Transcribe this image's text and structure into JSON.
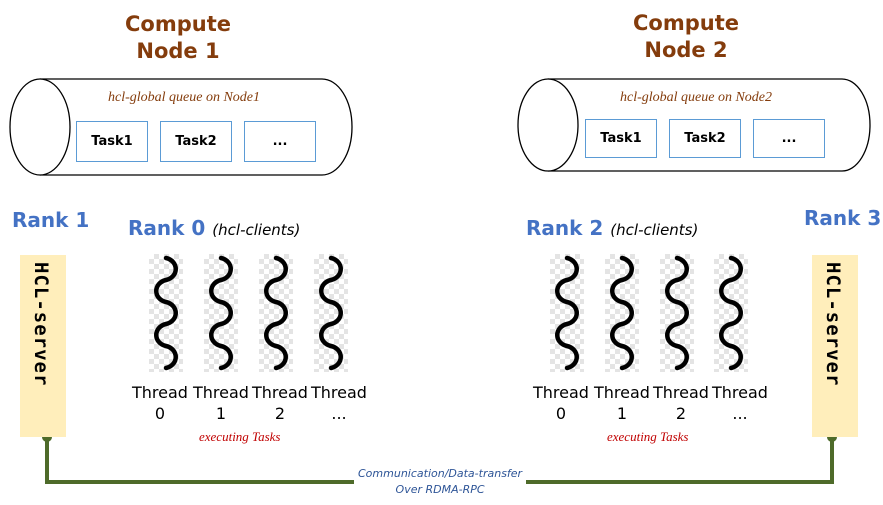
{
  "nodes": [
    {
      "title_line1": "Compute",
      "title_line2": "Node 1",
      "queue_label": "hcl-global queue on Node1",
      "tasks": [
        "Task1",
        "Task2",
        "..."
      ],
      "client_rank": "Rank 0",
      "client_note": "(hcl-clients)",
      "server_rank": "Rank 1",
      "server_label": "HCL-server",
      "threads": [
        {
          "word": "Thread",
          "id": "0"
        },
        {
          "word": "Thread",
          "id": "1"
        },
        {
          "word": "Thread",
          "id": "2"
        },
        {
          "word": "Thread",
          "id": "..."
        }
      ],
      "executing_label": "executing Tasks"
    },
    {
      "title_line1": "Compute",
      "title_line2": "Node 2",
      "queue_label": "hcl-global queue on Node2",
      "tasks": [
        "Task1",
        "Task2",
        "..."
      ],
      "client_rank": "Rank 2",
      "client_note": "(hcl-clients)",
      "server_rank": "Rank 3",
      "server_label": "HCL-server",
      "threads": [
        {
          "word": "Thread",
          "id": "0"
        },
        {
          "word": "Thread",
          "id": "1"
        },
        {
          "word": "Thread",
          "id": "2"
        },
        {
          "word": "Thread",
          "id": "..."
        }
      ],
      "executing_label": "executing Tasks"
    }
  ],
  "link": {
    "line1": "Communication/Data-transfer",
    "line2": "Over RDMA-RPC",
    "color": "#4e6b2a"
  },
  "colors": {
    "node_title": "#843c0c",
    "rank": "#4472c4",
    "task_border": "#5b9bd5",
    "server_fill": "#ffeebb",
    "executing": "#c00000"
  },
  "icons": {
    "queue": "cylinder-queue-icon",
    "thread": "wavy-thread-icon"
  }
}
